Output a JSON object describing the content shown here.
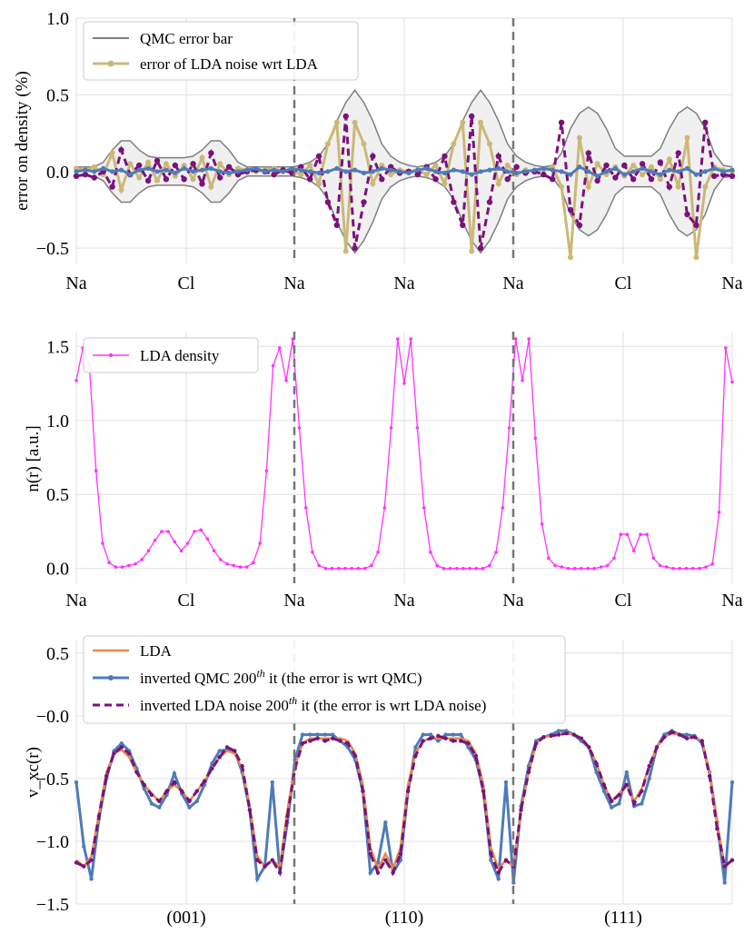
{
  "colors": {
    "qmc_error": "#7f7f7f",
    "lda_noise_err": "#cbb878",
    "inverted_qmc": "#4f7bb8",
    "inverted_lda_noise": "#7a127a",
    "lda_density": "#ff33ff",
    "lda_vxc": "#e8894a",
    "divider": "#777777",
    "grid": "#e0e0e0",
    "band_fill": "#f0f0f0"
  },
  "chart_data": [
    {
      "type": "line",
      "title": "",
      "ylabel": "error on density (%)",
      "xlabel": "",
      "ylim": [
        -0.6,
        1.0
      ],
      "yticks": [
        "1.0",
        "0.5",
        "0.0",
        "−0.5"
      ],
      "ytick_values": [
        1.0,
        0.5,
        0.0,
        -0.5
      ],
      "x_tick_labels": [
        "Na",
        "Cl",
        "Na",
        "Na",
        "Na",
        "Cl",
        "Na"
      ],
      "legend": {
        "position": "top-left",
        "entries": [
          "QMC error bar",
          "error of LDA noise wrt LDA"
        ]
      },
      "qmc_error_band_upper": [
        0.03,
        0.03,
        0.03,
        0.06,
        0.14,
        0.2,
        0.2,
        0.14,
        0.1,
        0.09,
        0.09,
        0.09,
        0.09,
        0.1,
        0.14,
        0.2,
        0.2,
        0.14,
        0.06,
        0.03,
        0.03,
        0.03,
        0.03,
        0.03,
        0.03,
        0.04,
        0.06,
        0.1,
        0.18,
        0.33,
        0.45,
        0.53,
        0.45,
        0.33,
        0.18,
        0.1,
        0.06,
        0.04,
        0.03,
        0.04,
        0.06,
        0.1,
        0.18,
        0.33,
        0.45,
        0.53,
        0.45,
        0.33,
        0.18,
        0.1,
        0.06,
        0.04,
        0.03,
        0.04,
        0.12,
        0.28,
        0.38,
        0.42,
        0.38,
        0.28,
        0.15,
        0.1,
        0.1,
        0.1,
        0.1,
        0.15,
        0.28,
        0.38,
        0.42,
        0.38,
        0.28,
        0.12,
        0.04,
        0.03
      ],
      "qmc_error_band_lower": [
        -0.03,
        -0.03,
        -0.03,
        -0.06,
        -0.14,
        -0.2,
        -0.2,
        -0.14,
        -0.1,
        -0.09,
        -0.09,
        -0.09,
        -0.09,
        -0.1,
        -0.14,
        -0.2,
        -0.2,
        -0.14,
        -0.06,
        -0.03,
        -0.03,
        -0.03,
        -0.03,
        -0.03,
        -0.03,
        -0.04,
        -0.06,
        -0.1,
        -0.18,
        -0.33,
        -0.45,
        -0.53,
        -0.45,
        -0.33,
        -0.18,
        -0.1,
        -0.06,
        -0.04,
        -0.03,
        -0.04,
        -0.06,
        -0.1,
        -0.18,
        -0.33,
        -0.45,
        -0.53,
        -0.45,
        -0.33,
        -0.18,
        -0.1,
        -0.06,
        -0.04,
        -0.03,
        -0.04,
        -0.12,
        -0.28,
        -0.38,
        -0.42,
        -0.38,
        -0.28,
        -0.15,
        -0.1,
        -0.1,
        -0.1,
        -0.1,
        -0.15,
        -0.28,
        -0.38,
        -0.42,
        -0.38,
        -0.28,
        -0.12,
        -0.04,
        -0.03
      ],
      "lda_noise_err": [
        0.02,
        0.01,
        0.03,
        -0.02,
        0.12,
        -0.12,
        0.05,
        -0.04,
        0.06,
        -0.06,
        0.05,
        -0.03,
        0.04,
        -0.05,
        0.09,
        -0.1,
        0.05,
        -0.02,
        0.02,
        0.01,
        0.0,
        0.01,
        0.02,
        0.0,
        0.01,
        -0.02,
        0.04,
        -0.08,
        0.18,
        0.32,
        -0.52,
        0.32,
        0.18,
        -0.08,
        0.04,
        -0.02,
        0.01,
        0.0,
        0.01,
        -0.02,
        0.04,
        -0.08,
        0.18,
        0.32,
        -0.52,
        0.32,
        0.18,
        -0.08,
        0.04,
        -0.02,
        0.01,
        0.0,
        0.01,
        0.03,
        -0.1,
        -0.56,
        0.22,
        -0.1,
        0.05,
        -0.02,
        0.03,
        -0.03,
        0.04,
        -0.02,
        0.03,
        -0.05,
        0.08,
        -0.1,
        0.22,
        -0.56,
        -0.1,
        0.03,
        0.01,
        0.0
      ],
      "inverted_qmc_err": [
        0.0,
        0.01,
        0.0,
        0.02,
        0.0,
        0.01,
        -0.02,
        0.01,
        0.02,
        0.0,
        0.01,
        -0.01,
        0.02,
        0.0,
        0.01,
        0.02,
        0.0,
        -0.01,
        0.0,
        0.01,
        0.02,
        0.0,
        0.01,
        0.0,
        0.02,
        0.01,
        0.0,
        -0.01,
        0.0,
        0.02,
        0.0,
        0.01,
        -0.01,
        0.0,
        0.02,
        0.01,
        0.0,
        -0.01,
        0.01,
        0.02,
        0.0,
        -0.01,
        0.01,
        0.0,
        -0.02,
        0.0,
        0.01,
        0.02,
        0.0,
        -0.01,
        0.0,
        0.01,
        0.02,
        0.01,
        0.0,
        -0.02,
        0.03,
        0.0,
        -0.03,
        0.0,
        0.02,
        -0.02,
        0.0,
        0.02,
        0.0,
        -0.02,
        0.01,
        0.0,
        0.02,
        -0.02,
        0.0,
        0.02,
        0.0,
        0.01
      ],
      "inverted_lda_noise_err": [
        -0.03,
        -0.02,
        -0.04,
        0.0,
        -0.1,
        0.14,
        -0.02,
        0.04,
        -0.06,
        0.07,
        -0.05,
        0.04,
        -0.05,
        0.05,
        -0.08,
        0.12,
        -0.04,
        0.03,
        -0.02,
        0.0,
        0.01,
        0.0,
        -0.02,
        0.01,
        -0.01,
        0.03,
        -0.05,
        0.1,
        -0.2,
        -0.35,
        0.36,
        -0.5,
        -0.2,
        0.1,
        -0.05,
        0.03,
        -0.01,
        0.0,
        -0.02,
        0.03,
        -0.05,
        0.1,
        -0.2,
        -0.35,
        0.36,
        -0.5,
        -0.2,
        0.1,
        -0.05,
        0.03,
        -0.01,
        0.0,
        -0.02,
        -0.05,
        0.32,
        -0.25,
        -0.35,
        0.12,
        -0.06,
        0.04,
        -0.04,
        0.04,
        -0.05,
        0.05,
        -0.05,
        0.06,
        -0.1,
        0.12,
        -0.28,
        -0.35,
        0.32,
        -0.03,
        -0.02,
        -0.03
      ]
    },
    {
      "type": "line",
      "title": "",
      "ylabel": "n(r) [a.u.]",
      "xlabel": "",
      "ylim": [
        -0.1,
        1.6
      ],
      "yticks": [
        "1.5",
        "1.0",
        "0.5",
        "0.0"
      ],
      "ytick_values": [
        1.5,
        1.0,
        0.5,
        0.0
      ],
      "x_tick_labels": [
        "Na",
        "Cl",
        "Na",
        "Na",
        "Na",
        "Cl",
        "Na"
      ],
      "legend": {
        "position": "top-left",
        "entries": [
          "LDA density"
        ]
      },
      "lda_density": [
        1.27,
        1.49,
        1.37,
        0.66,
        0.17,
        0.04,
        0.01,
        0.01,
        0.02,
        0.03,
        0.06,
        0.12,
        0.19,
        0.25,
        0.25,
        0.18,
        0.12,
        0.17,
        0.25,
        0.26,
        0.2,
        0.12,
        0.06,
        0.03,
        0.02,
        0.01,
        0.01,
        0.04,
        0.17,
        0.66,
        1.37,
        1.49,
        1.27,
        1.55,
        0.95,
        0.41,
        0.11,
        0.02,
        0.0,
        0.0,
        0.0,
        0.0,
        0.0,
        0.0,
        0.0,
        0.02,
        0.11,
        0.41,
        0.95,
        1.55,
        1.25,
        1.55,
        0.95,
        0.41,
        0.11,
        0.02,
        0.0,
        0.0,
        0.0,
        0.0,
        0.0,
        0.0,
        0.0,
        0.02,
        0.11,
        0.41,
        0.95,
        1.55,
        1.27,
        1.55,
        0.88,
        0.3,
        0.07,
        0.02,
        0.01,
        0.0,
        0.0,
        0.0,
        0.0,
        0.0,
        0.01,
        0.02,
        0.07,
        0.23,
        0.23,
        0.12,
        0.23,
        0.23,
        0.07,
        0.02,
        0.01,
        0.0,
        0.0,
        0.0,
        0.0,
        0.0,
        0.01,
        0.03,
        0.38,
        1.49,
        1.26
      ]
    },
    {
      "type": "line",
      "title": "",
      "ylabel": "v_xc(r)",
      "xlabel": "",
      "ylim": [
        -1.5,
        0.6
      ],
      "yticks": [
        "0.5",
        "−0.0",
        "−0.5",
        "−1.0",
        "−1.5"
      ],
      "ytick_values": [
        0.5,
        0.0,
        -0.5,
        -1.0,
        -1.5
      ],
      "x_categories": [
        "(001)",
        "(110)",
        "(111)"
      ],
      "legend": {
        "position": "top-left",
        "entries": [
          "LDA",
          "inverted QMC 200",
          "inverted LDA noise 200"
        ],
        "superscript": "th",
        "suffix_qmc": " it (the error is wrt QMC)",
        "suffix_lda": " it (the error is wrt LDA noise)"
      },
      "lda_vxc": [
        -1.15,
        -1.2,
        -1.12,
        -0.78,
        -0.45,
        -0.3,
        -0.27,
        -0.33,
        -0.45,
        -0.55,
        -0.62,
        -0.68,
        -0.6,
        -0.55,
        -0.6,
        -0.68,
        -0.6,
        -0.52,
        -0.42,
        -0.33,
        -0.28,
        -0.3,
        -0.42,
        -0.72,
        -1.12,
        -1.2,
        -1.15,
        -1.2,
        -0.75,
        -0.4,
        -0.22,
        -0.18,
        -0.18,
        -0.18,
        -0.18,
        -0.18,
        -0.2,
        -0.3,
        -0.55,
        -1.05,
        -1.22,
        -1.1,
        -1.22,
        -1.05,
        -0.55,
        -0.3,
        -0.2,
        -0.18,
        -0.18,
        -0.18,
        -0.18,
        -0.18,
        -0.2,
        -0.3,
        -0.55,
        -1.05,
        -1.22,
        -1.15,
        -1.2,
        -0.75,
        -0.45,
        -0.22,
        -0.17,
        -0.16,
        -0.15,
        -0.14,
        -0.15,
        -0.18,
        -0.25,
        -0.38,
        -0.55,
        -0.68,
        -0.62,
        -0.55,
        -0.68,
        -0.58,
        -0.4,
        -0.25,
        -0.17,
        -0.14,
        -0.15,
        -0.18,
        -0.17,
        -0.2,
        -0.45,
        -0.85,
        -1.2,
        -1.15
      ],
      "inverted_qmc_vxc": [
        -0.53,
        -1.04,
        -1.3,
        -0.82,
        -0.5,
        -0.28,
        -0.22,
        -0.28,
        -0.42,
        -0.58,
        -0.7,
        -0.73,
        -0.63,
        -0.46,
        -0.62,
        -0.73,
        -0.68,
        -0.55,
        -0.38,
        -0.28,
        -0.27,
        -0.28,
        -0.45,
        -0.75,
        -1.3,
        -1.2,
        -0.53,
        -1.25,
        -0.85,
        -0.35,
        -0.15,
        -0.15,
        -0.15,
        -0.15,
        -0.15,
        -0.2,
        -0.25,
        -0.35,
        -0.6,
        -1.25,
        -1.17,
        -0.85,
        -1.25,
        -1.15,
        -0.6,
        -0.25,
        -0.15,
        -0.15,
        -0.2,
        -0.15,
        -0.15,
        -0.15,
        -0.25,
        -0.35,
        -0.6,
        -1.15,
        -1.3,
        -0.53,
        -1.33,
        -0.72,
        -0.4,
        -0.2,
        -0.17,
        -0.15,
        -0.12,
        -0.12,
        -0.15,
        -0.2,
        -0.25,
        -0.45,
        -0.6,
        -0.73,
        -0.7,
        -0.45,
        -0.72,
        -0.7,
        -0.5,
        -0.25,
        -0.15,
        -0.12,
        -0.15,
        -0.15,
        -0.16,
        -0.22,
        -0.45,
        -0.85,
        -1.33,
        -0.53
      ],
      "inverted_lda_noise_vxc": [
        -1.17,
        -1.2,
        -1.15,
        -0.8,
        -0.48,
        -0.3,
        -0.25,
        -0.3,
        -0.45,
        -0.55,
        -0.63,
        -0.68,
        -0.6,
        -0.53,
        -0.6,
        -0.68,
        -0.6,
        -0.52,
        -0.42,
        -0.33,
        -0.25,
        -0.28,
        -0.4,
        -0.75,
        -1.15,
        -1.2,
        -1.15,
        -1.25,
        -0.8,
        -0.42,
        -0.22,
        -0.2,
        -0.18,
        -0.2,
        -0.18,
        -0.2,
        -0.22,
        -0.32,
        -0.6,
        -1.1,
        -1.25,
        -1.15,
        -1.25,
        -1.1,
        -0.6,
        -0.32,
        -0.2,
        -0.18,
        -0.16,
        -0.18,
        -0.2,
        -0.2,
        -0.22,
        -0.32,
        -0.6,
        -1.1,
        -1.25,
        -1.15,
        -1.2,
        -0.75,
        -0.45,
        -0.22,
        -0.17,
        -0.16,
        -0.15,
        -0.14,
        -0.15,
        -0.18,
        -0.25,
        -0.38,
        -0.55,
        -0.68,
        -0.63,
        -0.55,
        -0.7,
        -0.6,
        -0.4,
        -0.25,
        -0.17,
        -0.13,
        -0.15,
        -0.18,
        -0.17,
        -0.2,
        -0.48,
        -0.9,
        -1.2,
        -1.15
      ]
    }
  ]
}
